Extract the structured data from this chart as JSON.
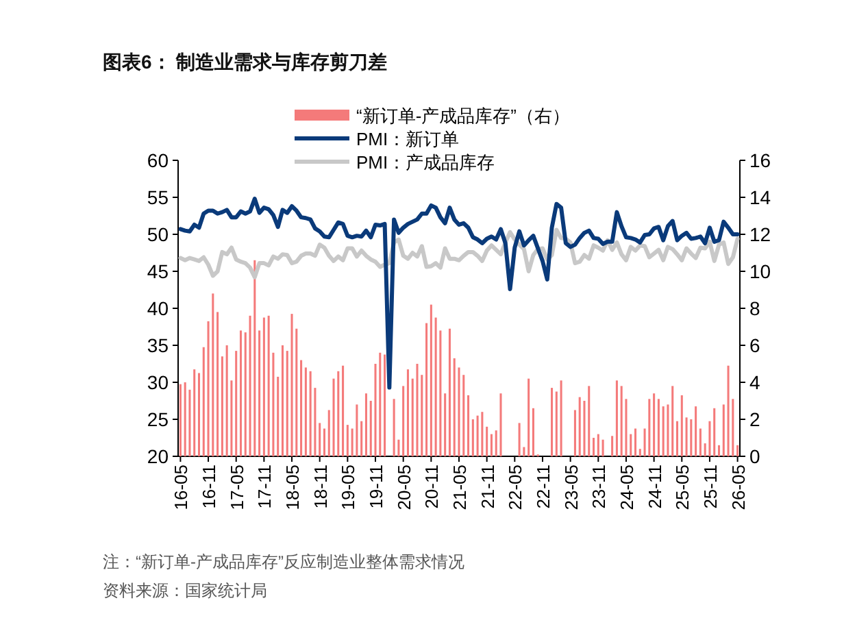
{
  "chart_data": {
    "type": "bar",
    "title": "图表6：  制造业需求与库存剪刀差",
    "categories": [
      "16-05",
      null,
      null,
      null,
      null,
      null,
      "16-11",
      null,
      null,
      null,
      null,
      null,
      "17-05",
      null,
      null,
      null,
      null,
      null,
      "17-11",
      null,
      null,
      null,
      null,
      null,
      "18-05",
      null,
      null,
      null,
      null,
      null,
      "18-11",
      null,
      null,
      null,
      null,
      null,
      "19-05",
      null,
      null,
      null,
      null,
      null,
      "19-11",
      null,
      null,
      null,
      null,
      null,
      "20-05",
      null,
      null,
      null,
      null,
      null,
      "20-11",
      null,
      null,
      null,
      null,
      null,
      "21-05",
      null,
      null,
      null,
      null,
      null,
      "21-11",
      null,
      null,
      null,
      null,
      null,
      "22-05",
      null,
      null,
      null,
      null,
      null,
      "22-11",
      null,
      null,
      null,
      null,
      null,
      "23-05",
      null,
      null,
      null,
      null,
      null,
      "23-11",
      null,
      null,
      null,
      null,
      null,
      "24-05",
      null,
      null,
      null,
      null,
      null,
      "24-11",
      null,
      null,
      null,
      null,
      null,
      "25-05",
      null,
      null,
      null,
      null,
      null,
      "25-11",
      null,
      null,
      null,
      null,
      null,
      "26-05"
    ],
    "series": [
      {
        "name": "“新订单-产成品库存”（右）",
        "axis": "y2",
        "color": "#f47a7a",
        "values": [
          3.9,
          4.0,
          3.6,
          4.7,
          4.5,
          5.9,
          7.3,
          8.8,
          7.8,
          5.4,
          6.0,
          4.1,
          5.7,
          6.8,
          6.7,
          7.6,
          10.6,
          6.8,
          7.5,
          7.6,
          5.6,
          4.3,
          6.0,
          5.7,
          7.7,
          6.9,
          5.2,
          4.8,
          4.6,
          3.7,
          1.8,
          1.5,
          2.5,
          4.2,
          4.6,
          4.9,
          1.7,
          1.5,
          2.8,
          1.9,
          3.4,
          3.0,
          5.0,
          5.6,
          5.5,
          null,
          3.1,
          0.9,
          3.8,
          4.7,
          4.2,
          5.0,
          4.4,
          7.2,
          8.2,
          7.5,
          6.8,
          3.4,
          6.9,
          5.3,
          4.8,
          4.4,
          3.3,
          2.0,
          2.2,
          2.4,
          1.6,
          1.2,
          1.4,
          3.4,
          null,
          null,
          null,
          1.8,
          0.5,
          4.2,
          2.6,
          0.1,
          null,
          null,
          3.7,
          3.5,
          4.1,
          null,
          null,
          2.5,
          3.2,
          3.0,
          3.8,
          1.0,
          1.2,
          0.9,
          null,
          1.1,
          4.1,
          3.8,
          3.1,
          1.2,
          1.5,
          0.4,
          1.5,
          3.1,
          3.4,
          3.1,
          2.7,
          2.8,
          3.8,
          1.9,
          3.3,
          2.1,
          2.0,
          2.7,
          1.5,
          0.7,
          1.9,
          2.6,
          0.6,
          2.8,
          4.9,
          3.1,
          0.6
        ]
      },
      {
        "name": "PMI：新订单",
        "type": "line",
        "axis": "y",
        "color": "#0a3a7a",
        "values": [
          50.7,
          50.5,
          50.4,
          51.3,
          50.9,
          52.8,
          53.2,
          53.2,
          52.8,
          53.0,
          53.3,
          52.3,
          52.3,
          53.1,
          52.8,
          53.1,
          54.8,
          52.9,
          53.6,
          53.4,
          52.6,
          51.0,
          53.3,
          52.9,
          53.8,
          53.2,
          52.3,
          52.2,
          52.0,
          50.8,
          50.4,
          49.7,
          49.6,
          50.6,
          51.6,
          51.4,
          49.8,
          49.6,
          49.8,
          49.7,
          50.5,
          49.6,
          51.3,
          51.2,
          51.4,
          29.3,
          52.0,
          50.2,
          50.9,
          51.4,
          51.7,
          52.0,
          52.8,
          52.8,
          53.9,
          53.6,
          52.3,
          51.5,
          53.6,
          52.0,
          51.3,
          51.5,
          50.9,
          49.6,
          49.3,
          48.8,
          49.4,
          49.7,
          49.3,
          50.7,
          48.8,
          42.6,
          48.2,
          50.4,
          48.5,
          49.2,
          49.8,
          48.1,
          46.4,
          43.9,
          50.9,
          54.1,
          53.6,
          48.8,
          48.3,
          48.6,
          49.5,
          50.2,
          50.5,
          49.5,
          49.4,
          48.7,
          49.0,
          49.0,
          53.0,
          51.1,
          49.6,
          49.5,
          49.3,
          48.9,
          49.9,
          50.0,
          50.8,
          51.0,
          49.2,
          51.1,
          51.8,
          49.2,
          49.8,
          50.2,
          49.4,
          49.5,
          49.7,
          48.8,
          50.9,
          49.0,
          49.2,
          51.7,
          50.9,
          50.0,
          50.0
        ]
      },
      {
        "name": "PMI：产成品库存",
        "type": "line",
        "axis": "y",
        "color": "#c8c8c8",
        "values": [
          46.8,
          46.5,
          46.8,
          46.6,
          46.4,
          46.9,
          45.9,
          44.4,
          45.0,
          47.6,
          47.3,
          48.2,
          46.6,
          46.3,
          46.1,
          45.5,
          44.2,
          46.1,
          46.1,
          45.8,
          47.0,
          46.7,
          47.3,
          47.2,
          46.1,
          46.3,
          47.1,
          47.4,
          47.4,
          47.1,
          48.6,
          48.2,
          47.1,
          46.4,
          47.0,
          46.5,
          48.1,
          48.1,
          47.0,
          47.8,
          47.1,
          46.6,
          46.3,
          45.6,
          45.9,
          46.1,
          48.9,
          49.3,
          47.1,
          46.7,
          47.5,
          47.0,
          48.4,
          45.6,
          45.7,
          46.1,
          45.5,
          48.1,
          46.7,
          46.7,
          46.5,
          47.1,
          47.6,
          47.6,
          47.1,
          46.4,
          47.8,
          48.5,
          47.9,
          47.3,
          48.9,
          50.3,
          49.3,
          48.6,
          48.0,
          45.0,
          47.2,
          48.0,
          48.1,
          46.6,
          47.2,
          50.6,
          49.5,
          49.4,
          48.9,
          46.1,
          46.3,
          47.2,
          46.7,
          48.5,
          48.2,
          47.8,
          49.2,
          47.9,
          48.9,
          47.3,
          46.5,
          48.3,
          47.8,
          48.5,
          48.4,
          46.9,
          47.4,
          47.9,
          46.5,
          48.3,
          48.0,
          47.3,
          46.5,
          48.1,
          47.4,
          46.8,
          48.2,
          48.1,
          49.0,
          46.4,
          48.6,
          48.9,
          46.0,
          46.9,
          49.4
        ]
      }
    ],
    "ylim": [
      20,
      60
    ],
    "yticks": [
      20,
      25,
      30,
      35,
      40,
      45,
      50,
      55,
      60
    ],
    "y2lim": [
      0,
      16
    ],
    "y2ticks": [
      0,
      2,
      4,
      6,
      8,
      10,
      12,
      14,
      16
    ],
    "legend": "top",
    "annotations": [
      "注：“新订单-产成品库存”反应制造业整体需求情况",
      "资料来源：国家统计局"
    ]
  }
}
